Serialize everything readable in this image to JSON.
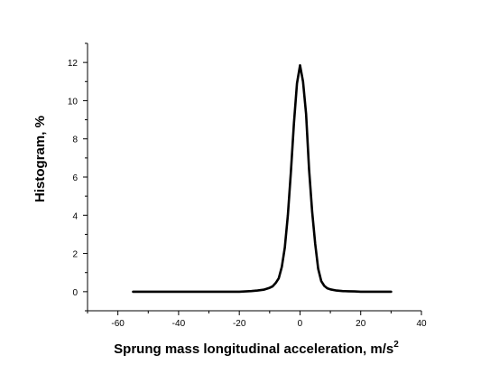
{
  "chart_data": {
    "type": "line",
    "title": "",
    "xlabel": "Sprung mass longitudinal acceleration, m/s",
    "xlabel_superscript": "2",
    "ylabel": "Histogram, %",
    "xlim": [
      -70,
      40
    ],
    "ylim": [
      -1,
      13
    ],
    "x_ticks": [
      -60,
      -40,
      -20,
      0,
      20,
      40
    ],
    "x_tick_labels": [
      "-60",
      "-40",
      "-20",
      "0",
      "20",
      "40"
    ],
    "y_ticks": [
      0,
      2,
      4,
      6,
      8,
      10,
      12
    ],
    "y_tick_labels": [
      "0",
      "2",
      "4",
      "6",
      "8",
      "10",
      "12"
    ],
    "grid": false,
    "legend": "none",
    "series": [
      {
        "color": "#000000",
        "x": [
          -55,
          -50,
          -40,
          -30,
          -20,
          -18,
          -16,
          -14,
          -12,
          -10,
          -9,
          -8,
          -7,
          -6,
          -5,
          -4,
          -3,
          -2,
          -1,
          0,
          1,
          2,
          3,
          4,
          5,
          6,
          7,
          8,
          9,
          10,
          12,
          14,
          16,
          18,
          20,
          25,
          30
        ],
        "y": [
          0,
          0,
          0,
          0,
          0,
          0.01,
          0.03,
          0.06,
          0.1,
          0.2,
          0.28,
          0.45,
          0.7,
          1.3,
          2.3,
          4.0,
          6.3,
          8.8,
          10.9,
          11.85,
          11.0,
          9.3,
          6.4,
          4.2,
          2.5,
          1.2,
          0.55,
          0.3,
          0.18,
          0.12,
          0.06,
          0.03,
          0.02,
          0.01,
          0.0,
          0.0,
          0.0
        ]
      }
    ]
  }
}
